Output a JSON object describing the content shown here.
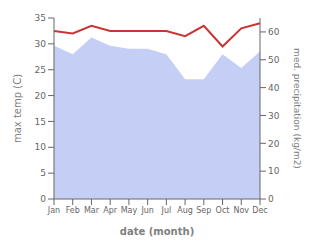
{
  "chart_data": {
    "type": "line",
    "xlabel": "date (month)",
    "ylabel": "max temp (C)",
    "y2label": "med. precipitation (kg/m2)",
    "categories": [
      "Jan",
      "Feb",
      "Mar",
      "Apr",
      "May",
      "Jun",
      "Jul",
      "Aug",
      "Sep",
      "Oct",
      "Nov",
      "Dec"
    ],
    "ylim": [
      0,
      35
    ],
    "yticks": [
      0,
      5,
      10,
      15,
      20,
      25,
      30,
      35
    ],
    "y2lim": [
      0,
      65
    ],
    "y2ticks": [
      0,
      10,
      20,
      30,
      40,
      50,
      60
    ],
    "series": [
      {
        "type": "area",
        "axis": "y2",
        "color": "#c5cff5",
        "values": [
          55,
          52,
          58,
          55,
          54,
          54,
          52,
          43,
          43,
          52,
          47,
          53
        ]
      },
      {
        "type": "line",
        "color": "#cc3333",
        "values": [
          32.5,
          32.0,
          33.5,
          32.5,
          32.5,
          32.5,
          32.5,
          31.5,
          33.5,
          29.5,
          33.0,
          34.0
        ]
      }
    ]
  }
}
